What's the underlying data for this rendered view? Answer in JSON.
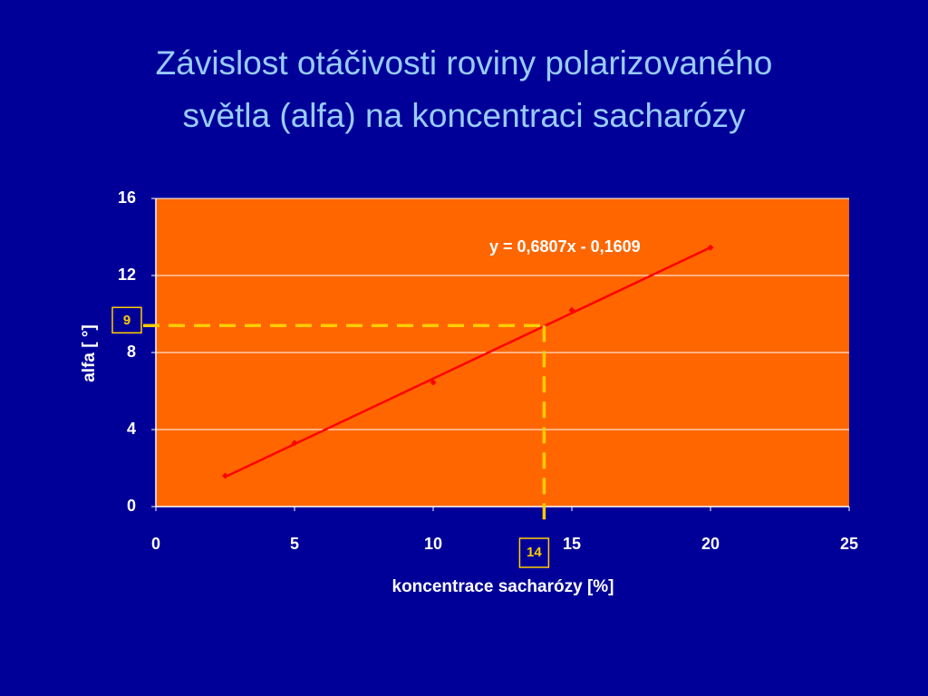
{
  "chart_data": {
    "type": "scatter",
    "title": "Závislost otáčivosti roviny polarizovaného\nsvětla (alfa) na koncentraci sacharózy",
    "x_label": "koncentrace sacharózy [%]",
    "y_label": "alfa [ °]",
    "series": [
      {
        "name": "alfa",
        "color": "#ff0000",
        "x": [
          2.5,
          5,
          10,
          15,
          20
        ],
        "values": [
          1.6,
          3.3,
          6.45,
          10.2,
          13.45
        ]
      }
    ],
    "trendline": {
      "equation": "y = 0,6807x - 0,1609",
      "color": "#ff0000",
      "x": [
        2.5,
        20
      ],
      "values": [
        1.541,
        13.453
      ]
    },
    "reading": {
      "color": "#ffcc00",
      "x": {
        "value": 14,
        "label": "14"
      },
      "y": {
        "value": 9.4,
        "label": "9"
      }
    },
    "xlim": [
      0,
      25
    ],
    "xticks": [
      0,
      5,
      10,
      15,
      20,
      25
    ],
    "ylim": [
      0,
      16
    ],
    "yticks": [
      0,
      4,
      8,
      12,
      16
    ],
    "grid": true,
    "plot_color": "#ff6600"
  }
}
